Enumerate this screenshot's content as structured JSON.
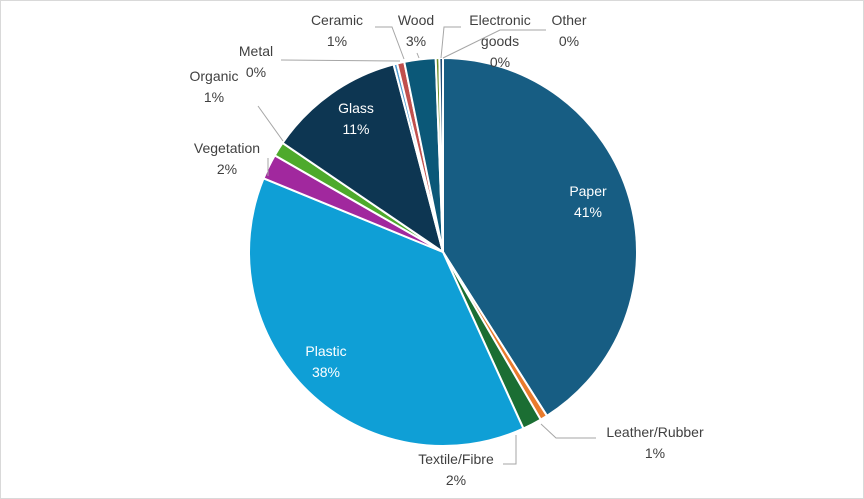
{
  "chart_data": {
    "type": "pie",
    "title": "",
    "legend": "none",
    "slices": [
      {
        "label": "Paper",
        "value": 41,
        "display": "41%",
        "color": "#175d83"
      },
      {
        "label": "Leather/Rubber",
        "value": 0.6,
        "display": "1%",
        "color": "#e97b2d"
      },
      {
        "label": "Textile/Fibre",
        "value": 1.6,
        "display": "2%",
        "color": "#1b6e33"
      },
      {
        "label": "Plastic",
        "value": 38,
        "display": "38%",
        "color": "#0f9fd6"
      },
      {
        "label": "Vegetation",
        "value": 2.1,
        "display": "2%",
        "color": "#a1289e"
      },
      {
        "label": "Organic",
        "value": 1.2,
        "display": "1%",
        "color": "#4eaa2c"
      },
      {
        "label": "Glass",
        "value": 11.4,
        "display": "11%",
        "color": "#0d3652"
      },
      {
        "label": "Metal",
        "value": 0.3,
        "display": "0%",
        "color": "#4e9bd0"
      },
      {
        "label": "Ceramic",
        "value": 0.6,
        "display": "1%",
        "color": "#c0504d"
      },
      {
        "label": "Wood",
        "value": 2.6,
        "display": "3%",
        "color": "#0b5878"
      },
      {
        "label": "Electronic goods",
        "value": 0.3,
        "display": "0%",
        "color": "#6b8e23"
      },
      {
        "label": "Other",
        "value": 0.3,
        "display": "0%",
        "color": "#1f4e79"
      }
    ]
  }
}
